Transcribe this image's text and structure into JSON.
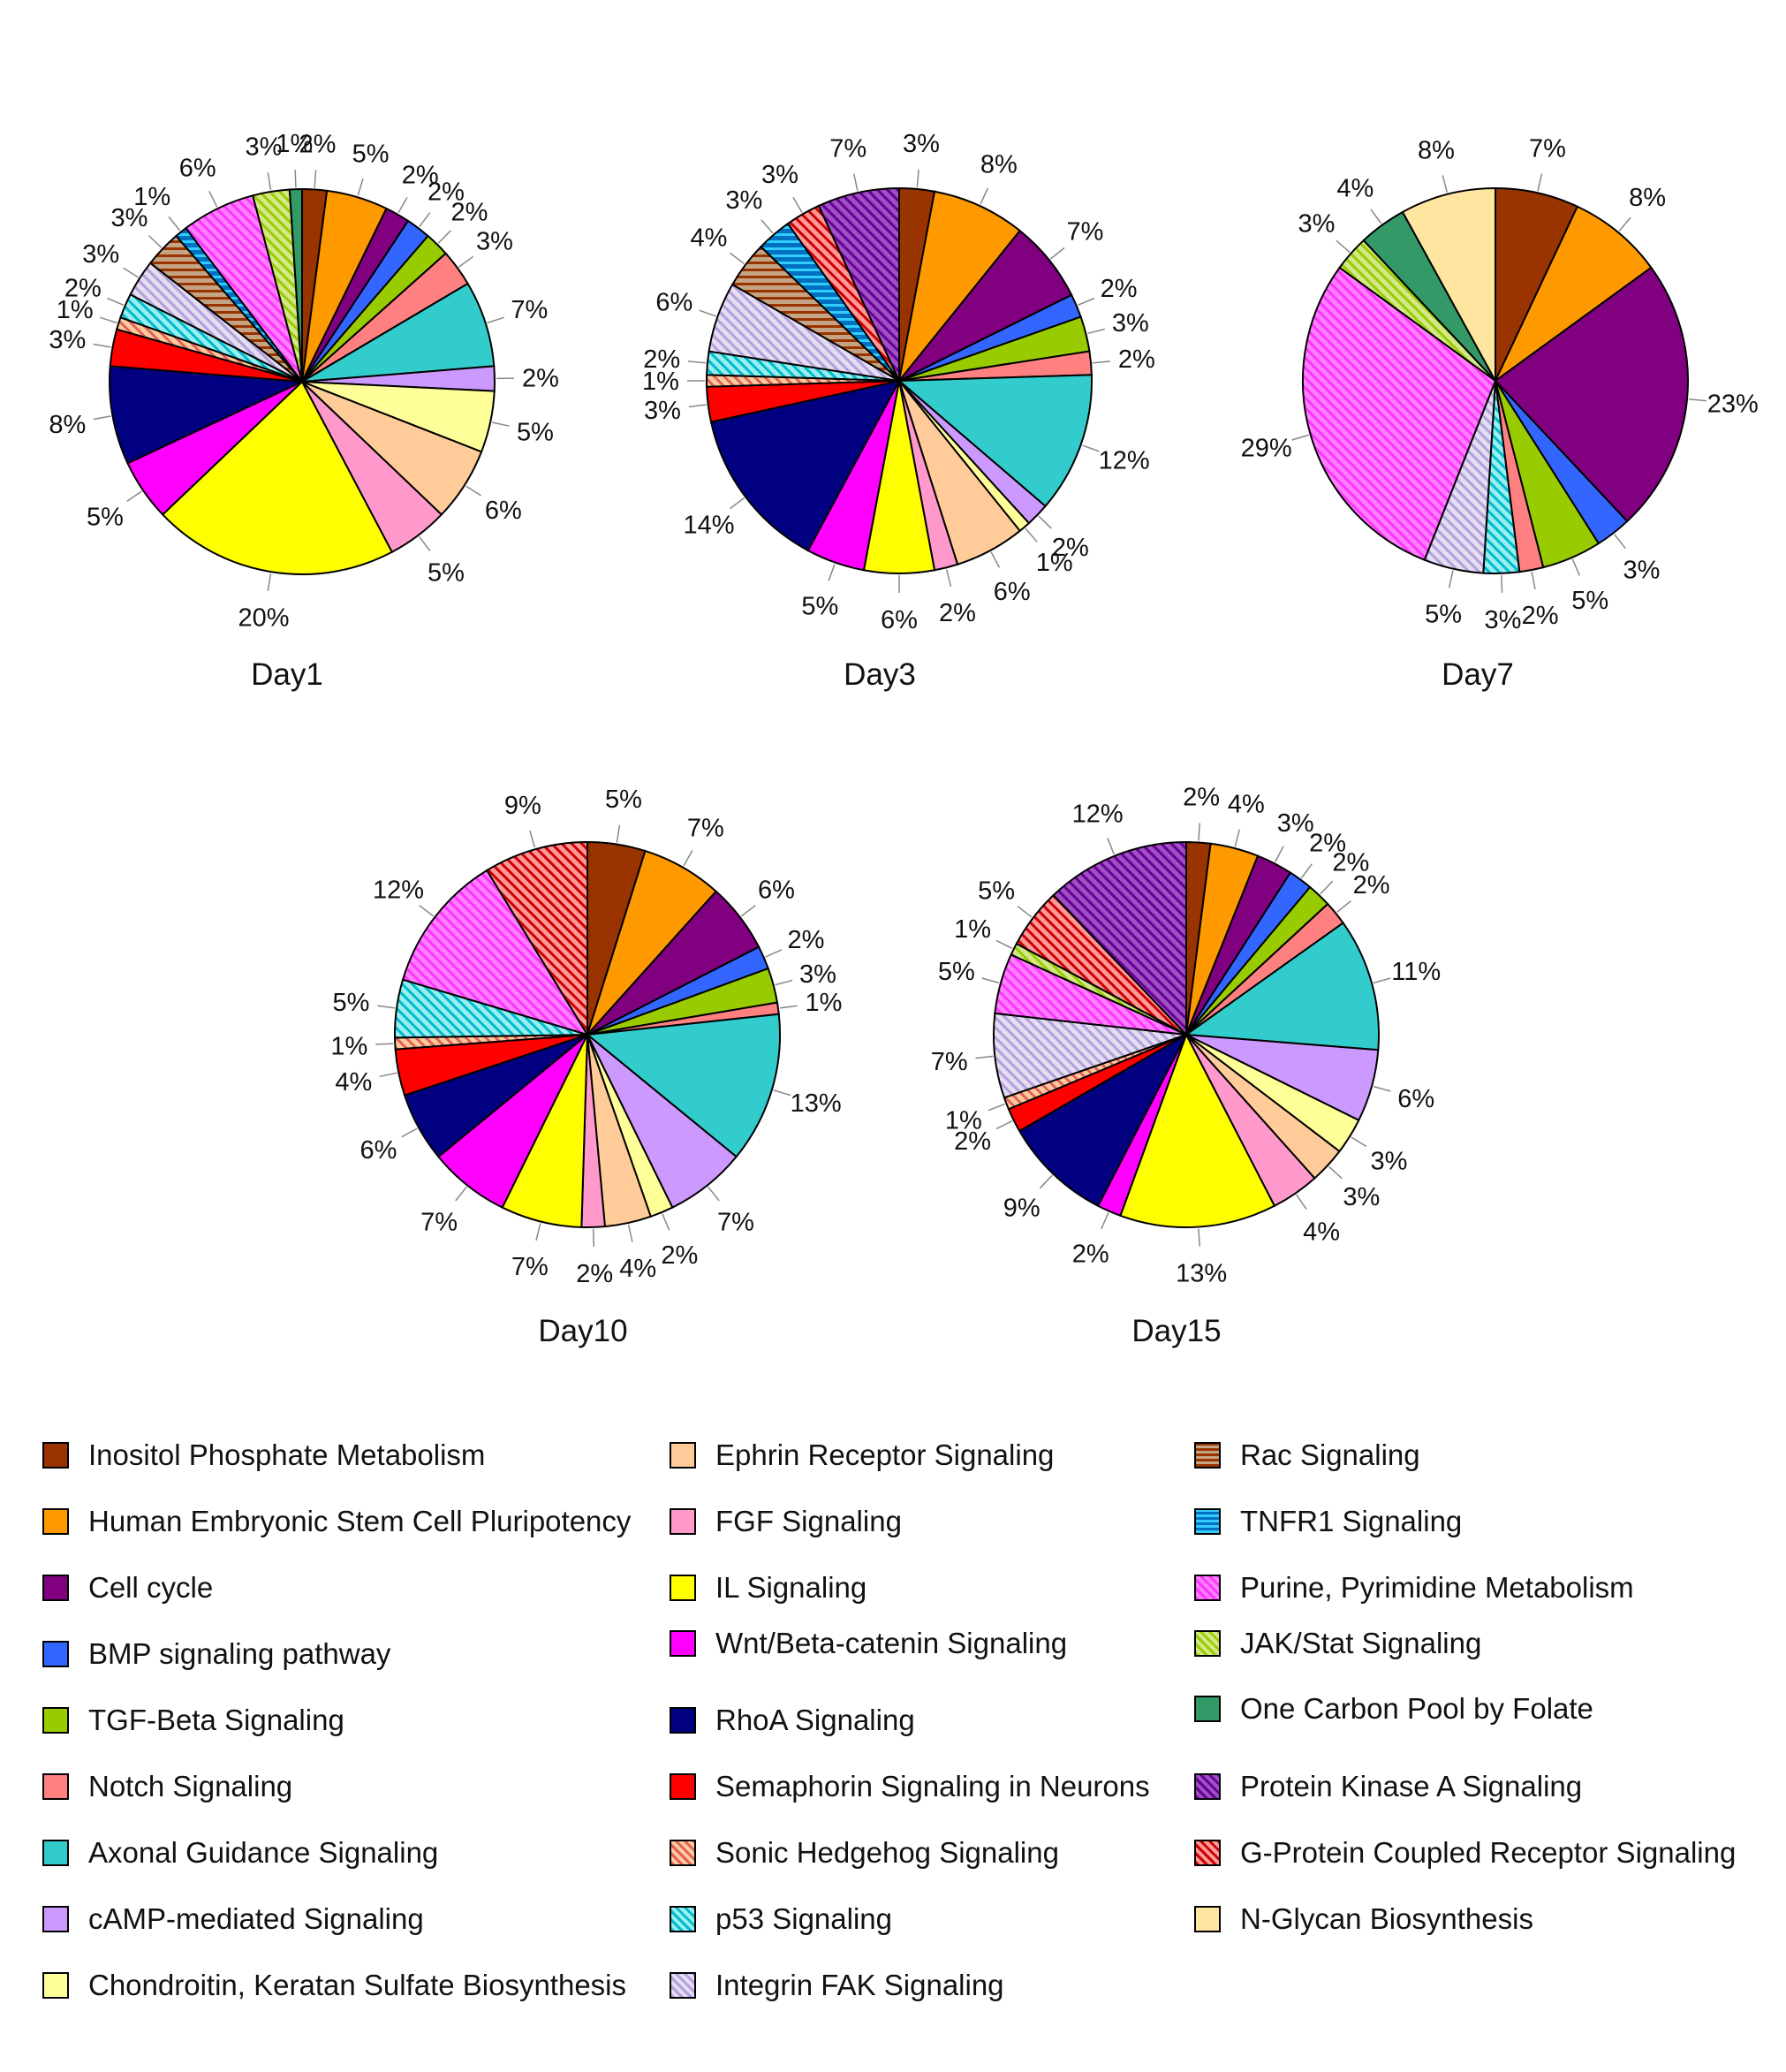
{
  "legend": [
    {
      "id": "inositol",
      "label": "Inositol Phosphate Metabolism",
      "color": "#993300",
      "pattern": "solid"
    },
    {
      "id": "hesc",
      "label": "Human Embryonic Stem Cell Pluripotency",
      "color": "#FF9900",
      "pattern": "solid"
    },
    {
      "id": "cellcycle",
      "label": "Cell cycle",
      "color": "#800080",
      "pattern": "solid"
    },
    {
      "id": "bmp",
      "label": "BMP signaling pathway",
      "color": "#3366FF",
      "pattern": "solid"
    },
    {
      "id": "tgf",
      "label": "TGF-Beta Signaling",
      "color": "#99CC00",
      "pattern": "solid"
    },
    {
      "id": "notch",
      "label": "Notch Signaling",
      "color": "#FF8080",
      "pattern": "solid"
    },
    {
      "id": "axonal",
      "label": "Axonal Guidance Signaling",
      "color": "#33CCCC",
      "pattern": "solid"
    },
    {
      "id": "camp",
      "label": "cAMP-mediated Signaling",
      "color": "#CC99FF",
      "pattern": "solid"
    },
    {
      "id": "chondroitin",
      "label": "Chondroitin, Keratan Sulfate Biosynthesis",
      "color": "#FFFF99",
      "pattern": "solid"
    },
    {
      "id": "ephrin",
      "label": "Ephrin Receptor Signaling",
      "color": "#FFCC99",
      "pattern": "solid"
    },
    {
      "id": "fgf",
      "label": "FGF Signaling",
      "color": "#FF99CC",
      "pattern": "solid"
    },
    {
      "id": "il",
      "label": "IL Signaling",
      "color": "#FFFF00",
      "pattern": "solid"
    },
    {
      "id": "wnt",
      "label": "Wnt/Beta-catenin Signaling",
      "color": "#FF00FF",
      "pattern": "solid"
    },
    {
      "id": "rhoa",
      "label": "RhoA Signaling",
      "color": "#000080",
      "pattern": "solid"
    },
    {
      "id": "semaphorin",
      "label": "Semaphorin Signaling in Neurons",
      "color": "#FF0000",
      "pattern": "solid"
    },
    {
      "id": "shh",
      "label": "Sonic Hedgehog Signaling",
      "color": "#FFCC99",
      "pattern": "hatch",
      "hatchColor": "#E06060"
    },
    {
      "id": "p53",
      "label": "p53 Signaling",
      "color": "#99EEF0",
      "pattern": "hatch",
      "hatchColor": "#00BBCC"
    },
    {
      "id": "integrin",
      "label": "Integrin FAK Signaling",
      "color": "#E6DDF0",
      "pattern": "hatch",
      "hatchColor": "#B0A0DD"
    },
    {
      "id": "rac",
      "label": "Rac Signaling",
      "color": "#C4A484",
      "pattern": "hstripe",
      "hatchColor": "#993300"
    },
    {
      "id": "tnfr1",
      "label": "TNFR1 Signaling",
      "color": "#0070C0",
      "pattern": "hstripe",
      "hatchColor": "#33CCFF"
    },
    {
      "id": "purine",
      "label": "Purine, Pyrimidine Metabolism",
      "color": "#FF80FF",
      "pattern": "hatch",
      "hatchColor": "#FF33FF"
    },
    {
      "id": "jakstat",
      "label": "JAK/Stat Signaling",
      "color": "#D4E88A",
      "pattern": "hatch",
      "hatchColor": "#99CC00"
    },
    {
      "id": "onecarbon",
      "label": "One Carbon Pool by Folate",
      "color": "#339966",
      "pattern": "solid"
    },
    {
      "id": "pka",
      "label": "Protein Kinase A Signaling",
      "color": "#A050C0",
      "pattern": "hatch",
      "hatchColor": "#660099"
    },
    {
      "id": "gpcr",
      "label": "G-Protein Coupled Receptor Signaling",
      "color": "#FF9999",
      "pattern": "hatch",
      "hatchColor": "#CC0000"
    },
    {
      "id": "nglycan",
      "label": "N-Glycan Biosynthesis",
      "color": "#FFE6A0",
      "pattern": "solid"
    }
  ],
  "chart_data": [
    {
      "type": "pie",
      "title": "Day1",
      "slices": [
        {
          "category": "inositol",
          "value": 2,
          "label": "2%"
        },
        {
          "category": "hesc",
          "value": 5,
          "label": "5%"
        },
        {
          "category": "cellcycle",
          "value": 2,
          "label": "2%"
        },
        {
          "category": "bmp",
          "value": 2,
          "label": "2%"
        },
        {
          "category": "tgf",
          "value": 2,
          "label": "2%"
        },
        {
          "category": "notch",
          "value": 3,
          "label": "3%"
        },
        {
          "category": "axonal",
          "value": 7,
          "label": "7%"
        },
        {
          "category": "camp",
          "value": 2,
          "label": "2%"
        },
        {
          "category": "chondroitin",
          "value": 5,
          "label": "5%"
        },
        {
          "category": "ephrin",
          "value": 6,
          "label": "6%"
        },
        {
          "category": "fgf",
          "value": 5,
          "label": "5%"
        },
        {
          "category": "il",
          "value": 20,
          "label": "20%"
        },
        {
          "category": "wnt",
          "value": 5,
          "label": "5%"
        },
        {
          "category": "rhoa",
          "value": 8,
          "label": "8%"
        },
        {
          "category": "semaphorin",
          "value": 3,
          "label": "3%"
        },
        {
          "category": "shh",
          "value": 1,
          "label": "1%"
        },
        {
          "category": "p53",
          "value": 2,
          "label": "2%"
        },
        {
          "category": "integrin",
          "value": 3,
          "label": "3%"
        },
        {
          "category": "rac",
          "value": 3,
          "label": "3%"
        },
        {
          "category": "tnfr1",
          "value": 1,
          "label": "1%"
        },
        {
          "category": "purine",
          "value": 6,
          "label": "6%"
        },
        {
          "category": "jakstat",
          "value": 3,
          "label": "3%"
        },
        {
          "category": "onecarbon",
          "value": 1,
          "label": "1%"
        }
      ]
    },
    {
      "type": "pie",
      "title": "Day3",
      "slices": [
        {
          "category": "inositol",
          "value": 3,
          "label": "3%"
        },
        {
          "category": "hesc",
          "value": 8,
          "label": "8%"
        },
        {
          "category": "cellcycle",
          "value": 7,
          "label": "7%"
        },
        {
          "category": "bmp",
          "value": 2,
          "label": "2%"
        },
        {
          "category": "tgf",
          "value": 3,
          "label": "3%"
        },
        {
          "category": "notch",
          "value": 2,
          "label": "2%"
        },
        {
          "category": "axonal",
          "value": 12,
          "label": "12%"
        },
        {
          "category": "camp",
          "value": 2,
          "label": "2%"
        },
        {
          "category": "chondroitin",
          "value": 1,
          "label": "1%"
        },
        {
          "category": "ephrin",
          "value": 6,
          "label": "6%"
        },
        {
          "category": "fgf",
          "value": 2,
          "label": "2%"
        },
        {
          "category": "il",
          "value": 6,
          "label": "6%"
        },
        {
          "category": "wnt",
          "value": 5,
          "label": "5%"
        },
        {
          "category": "rhoa",
          "value": 14,
          "label": "14%"
        },
        {
          "category": "semaphorin",
          "value": 3,
          "label": "3%"
        },
        {
          "category": "shh",
          "value": 1,
          "label": "1%"
        },
        {
          "category": "p53",
          "value": 2,
          "label": "2%"
        },
        {
          "category": "integrin",
          "value": 6,
          "label": "6%"
        },
        {
          "category": "rac",
          "value": 4,
          "label": "4%"
        },
        {
          "category": "tnfr1",
          "value": 3,
          "label": "3%"
        },
        {
          "category": "gpcr",
          "value": 3,
          "label": "3%"
        },
        {
          "category": "pka",
          "value": 7,
          "label": "7%"
        }
      ]
    },
    {
      "type": "pie",
      "title": "Day7",
      "slices": [
        {
          "category": "inositol",
          "value": 7,
          "label": "7%"
        },
        {
          "category": "hesc",
          "value": 8,
          "label": "8%"
        },
        {
          "category": "cellcycle",
          "value": 23,
          "label": "23%"
        },
        {
          "category": "bmp",
          "value": 3,
          "label": "3%"
        },
        {
          "category": "tgf",
          "value": 5,
          "label": "5%"
        },
        {
          "category": "notch",
          "value": 2,
          "label": "2%"
        },
        {
          "category": "p53",
          "value": 3,
          "label": "3%"
        },
        {
          "category": "integrin",
          "value": 5,
          "label": "5%"
        },
        {
          "category": "purine",
          "value": 29,
          "label": "29%"
        },
        {
          "category": "jakstat",
          "value": 3,
          "label": "3%"
        },
        {
          "category": "onecarbon",
          "value": 4,
          "label": "4%"
        },
        {
          "category": "nglycan",
          "value": 8,
          "label": "8%"
        }
      ]
    },
    {
      "type": "pie",
      "title": "Day10",
      "slices": [
        {
          "category": "inositol",
          "value": 5,
          "label": "5%"
        },
        {
          "category": "hesc",
          "value": 7,
          "label": "7%"
        },
        {
          "category": "cellcycle",
          "value": 6,
          "label": "6%"
        },
        {
          "category": "bmp",
          "value": 2,
          "label": "2%"
        },
        {
          "category": "tgf",
          "value": 3,
          "label": "3%"
        },
        {
          "category": "notch",
          "value": 1,
          "label": "1%"
        },
        {
          "category": "axonal",
          "value": 13,
          "label": "13%"
        },
        {
          "category": "camp",
          "value": 7,
          "label": "7%"
        },
        {
          "category": "chondroitin",
          "value": 2,
          "label": "2%"
        },
        {
          "category": "ephrin",
          "value": 4,
          "label": "4%"
        },
        {
          "category": "fgf",
          "value": 2,
          "label": "2%"
        },
        {
          "category": "il",
          "value": 7,
          "label": "7%"
        },
        {
          "category": "wnt",
          "value": 7,
          "label": "7%"
        },
        {
          "category": "rhoa",
          "value": 6,
          "label": "6%"
        },
        {
          "category": "semaphorin",
          "value": 4,
          "label": "4%"
        },
        {
          "category": "shh",
          "value": 1,
          "label": "1%"
        },
        {
          "category": "p53",
          "value": 5,
          "label": "5%"
        },
        {
          "category": "purine",
          "value": 12,
          "label": "12%"
        },
        {
          "category": "gpcr",
          "value": 9,
          "label": "9%"
        }
      ]
    },
    {
      "type": "pie",
      "title": "Day15",
      "slices": [
        {
          "category": "inositol",
          "value": 2,
          "label": "2%"
        },
        {
          "category": "hesc",
          "value": 4,
          "label": "4%"
        },
        {
          "category": "cellcycle",
          "value": 3,
          "label": "3%"
        },
        {
          "category": "bmp",
          "value": 2,
          "label": "2%"
        },
        {
          "category": "tgf",
          "value": 2,
          "label": "2%"
        },
        {
          "category": "notch",
          "value": 2,
          "label": "2%"
        },
        {
          "category": "axonal",
          "value": 11,
          "label": "11%"
        },
        {
          "category": "camp",
          "value": 6,
          "label": "6%"
        },
        {
          "category": "chondroitin",
          "value": 3,
          "label": "3%"
        },
        {
          "category": "ephrin",
          "value": 3,
          "label": "3%"
        },
        {
          "category": "fgf",
          "value": 4,
          "label": "4%"
        },
        {
          "category": "il",
          "value": 13,
          "label": "13%"
        },
        {
          "category": "wnt",
          "value": 2,
          "label": "2%"
        },
        {
          "category": "rhoa",
          "value": 9,
          "label": "9%"
        },
        {
          "category": "semaphorin",
          "value": 2,
          "label": "2%"
        },
        {
          "category": "shh",
          "value": 1,
          "label": "1%"
        },
        {
          "category": "integrin",
          "value": 7,
          "label": "7%"
        },
        {
          "category": "purine",
          "value": 5,
          "label": "5%"
        },
        {
          "category": "jakstat",
          "value": 1,
          "label": "1%"
        },
        {
          "category": "gpcr",
          "value": 5,
          "label": "5%"
        },
        {
          "category": "pka",
          "value": 12,
          "label": "12%"
        }
      ]
    }
  ]
}
